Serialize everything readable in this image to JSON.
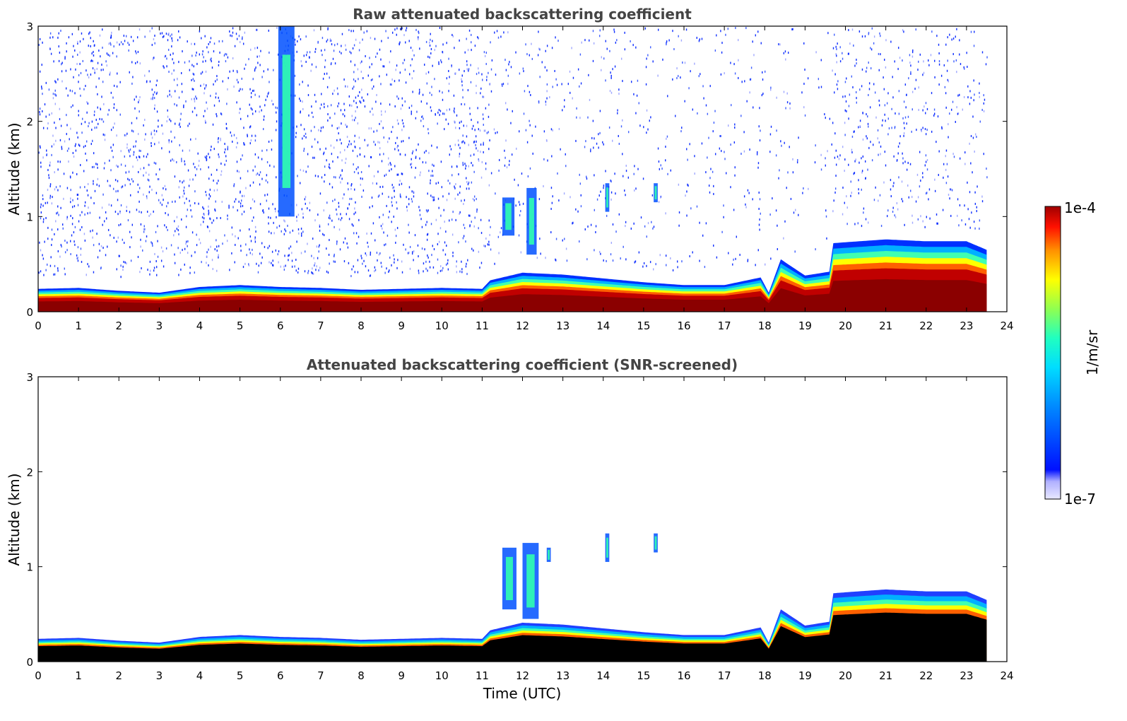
{
  "chart_data": [
    {
      "type": "heatmap",
      "title": "Raw attenuated backscattering coefficient",
      "xlabel": "",
      "ylabel": "Altitude (km)",
      "xlim": [
        0,
        24
      ],
      "ylim": [
        0,
        3
      ],
      "x_ticks": [
        "0",
        "1",
        "2",
        "3",
        "4",
        "5",
        "6",
        "7",
        "8",
        "9",
        "10",
        "11",
        "12",
        "13",
        "14",
        "15",
        "16",
        "17",
        "18",
        "19",
        "20",
        "21",
        "22",
        "23",
        "24"
      ],
      "y_ticks": [
        "0",
        "1",
        "2",
        "3"
      ],
      "grid": false,
      "boundary_layer_top_km": {
        "x": [
          0,
          1,
          2,
          3,
          4,
          5,
          6,
          7,
          8,
          9,
          10,
          11,
          11.2,
          12,
          13,
          14,
          15,
          16,
          17,
          17.9,
          18.1,
          18.4,
          19,
          19.6,
          19.7,
          20,
          21,
          22,
          23,
          23.5
        ],
        "y": [
          0.24,
          0.25,
          0.22,
          0.2,
          0.26,
          0.28,
          0.26,
          0.25,
          0.23,
          0.24,
          0.25,
          0.24,
          0.33,
          0.41,
          0.39,
          0.35,
          0.31,
          0.28,
          0.28,
          0.36,
          0.2,
          0.55,
          0.38,
          0.42,
          0.72,
          0.73,
          0.76,
          0.74,
          0.74,
          0.65
        ]
      },
      "noise_extent": [
        {
          "x0": 0,
          "x1": 11.2,
          "density": 0.8
        },
        {
          "x0": 11.2,
          "x1": 18.0,
          "density": 0.3
        },
        {
          "x0": 18.1,
          "x1": 19.7,
          "density": 0.2
        },
        {
          "x0": 19.7,
          "x1": 23.5,
          "density": 0.45
        }
      ],
      "elevated_layers": [
        {
          "x0": 5.95,
          "x1": 6.35,
          "y0": 1.0,
          "y1": 3.0
        },
        {
          "x0": 11.5,
          "x1": 11.8,
          "y0": 0.8,
          "y1": 1.2
        },
        {
          "x0": 12.1,
          "x1": 12.35,
          "y0": 0.6,
          "y1": 1.3
        },
        {
          "x0": 14.05,
          "x1": 14.15,
          "y0": 1.05,
          "y1": 1.35
        },
        {
          "x0": 15.25,
          "x1": 15.35,
          "y0": 1.15,
          "y1": 1.35
        }
      ]
    },
    {
      "type": "heatmap",
      "title": "Attenuated backscattering coefficient (SNR-screened)",
      "xlabel": "Time (UTC)",
      "ylabel": "Altitude (km)",
      "xlim": [
        0,
        24
      ],
      "ylim": [
        0,
        3
      ],
      "x_ticks": [
        "0",
        "1",
        "2",
        "3",
        "4",
        "5",
        "6",
        "7",
        "8",
        "9",
        "10",
        "11",
        "12",
        "13",
        "14",
        "15",
        "16",
        "17",
        "18",
        "19",
        "20",
        "21",
        "22",
        "23",
        "24"
      ],
      "y_ticks": [
        "0",
        "1",
        "2",
        "3"
      ],
      "grid": false,
      "boundary_layer_top_km": {
        "x": [
          0,
          1,
          2,
          3,
          4,
          5,
          6,
          7,
          8,
          9,
          10,
          11,
          11.2,
          12,
          13,
          14,
          15,
          16,
          17,
          17.9,
          18.1,
          18.4,
          19,
          19.6,
          19.7,
          20,
          21,
          22,
          23,
          23.5
        ],
        "y": [
          0.24,
          0.25,
          0.22,
          0.2,
          0.26,
          0.28,
          0.26,
          0.25,
          0.23,
          0.24,
          0.25,
          0.24,
          0.33,
          0.41,
          0.39,
          0.35,
          0.31,
          0.28,
          0.28,
          0.36,
          0.2,
          0.55,
          0.38,
          0.42,
          0.72,
          0.73,
          0.76,
          0.74,
          0.74,
          0.65
        ]
      },
      "elevated_layers": [
        {
          "x0": 11.5,
          "x1": 11.85,
          "y0": 0.55,
          "y1": 1.2
        },
        {
          "x0": 12.0,
          "x1": 12.4,
          "y0": 0.45,
          "y1": 1.25
        },
        {
          "x0": 12.6,
          "x1": 12.7,
          "y0": 1.05,
          "y1": 1.2
        },
        {
          "x0": 14.05,
          "x1": 14.15,
          "y0": 1.05,
          "y1": 1.35
        },
        {
          "x0": 15.25,
          "x1": 15.35,
          "y0": 1.15,
          "y1": 1.35
        }
      ]
    }
  ],
  "colorbar": {
    "label": "1/m/sr",
    "max_label": "1e-4",
    "min_label": "1e-7",
    "colors": [
      "#e8e8ff",
      "#b0b0ff",
      "#0010ff",
      "#0080ff",
      "#00ddff",
      "#20ffc0",
      "#90ff50",
      "#ffff00",
      "#ff9000",
      "#ff1000",
      "#a00000"
    ]
  }
}
